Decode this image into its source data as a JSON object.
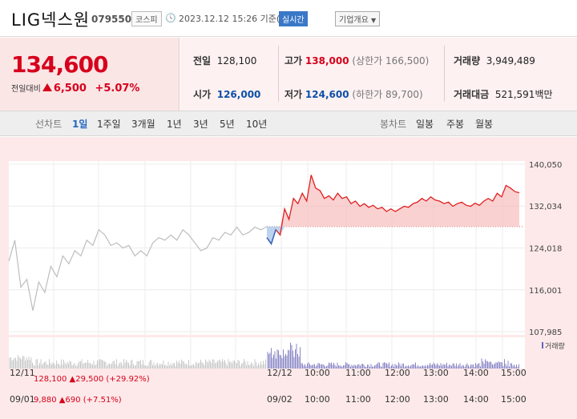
{
  "header": {
    "name": "LIG넥스원",
    "code": "079550",
    "market": "코스피",
    "datetime": "2023.12.12 15:26 기준(장중)",
    "realtime": "실시간",
    "company_info": "기업개요"
  },
  "price": {
    "current": "134,600",
    "label": "전일대비",
    "change": "6,500",
    "pct": "+5.07%"
  },
  "stats": {
    "prev_label": "전일",
    "prev": "128,100",
    "high_label": "고가",
    "high": "138,000",
    "upper_label": "(상한가",
    "upper": "166,500)",
    "vol_label": "거래량",
    "vol": "3,949,489",
    "open_label": "시가",
    "open": "126,000",
    "low_label": "저가",
    "low": "124,600",
    "lower_label": "(하한가",
    "lower": "89,700)",
    "amt_label": "거래대금",
    "amt": "521,591",
    "amt_unit": "백만"
  },
  "tabs": {
    "line_label": "선차트",
    "periods": [
      "1일",
      "1주일",
      "3개월",
      "1년",
      "3년",
      "5년",
      "10년"
    ],
    "candle_label": "봉차트",
    "candle_periods": [
      "일봉",
      "주봉",
      "월봉"
    ]
  },
  "chart_data": {
    "type": "line",
    "y_ticks": [
      "140,050",
      "132,034",
      "124,018",
      "116,001",
      "107,985"
    ],
    "ylim": [
      107985,
      140050
    ],
    "prev_close": 128100,
    "legend_volume": "거래량",
    "top_axis": {
      "labels": [
        "12/11",
        "12/12",
        "10:00",
        "11:00",
        "12:00",
        "13:00",
        "14:00",
        "15:00"
      ],
      "info": "128,100 ▲29,500 (+29.92%)"
    },
    "bottom_axis": {
      "labels": [
        "09/01",
        "09/02",
        "10:00",
        "11:00",
        "12:00",
        "13:00",
        "14:00",
        "15:00"
      ],
      "info": "9,880 ▲690 (+7.51%)"
    },
    "history_series": [
      [
        0,
        121500
      ],
      [
        1,
        125500
      ],
      [
        2,
        116500
      ],
      [
        3,
        118000
      ],
      [
        4,
        112000
      ],
      [
        5,
        117500
      ],
      [
        6,
        115500
      ],
      [
        7,
        120500
      ],
      [
        8,
        118500
      ],
      [
        9,
        122500
      ],
      [
        10,
        121000
      ],
      [
        11,
        123500
      ],
      [
        12,
        122500
      ],
      [
        13,
        125500
      ],
      [
        14,
        124500
      ],
      [
        15,
        127500
      ],
      [
        16,
        126500
      ],
      [
        17,
        124500
      ],
      [
        18,
        125000
      ],
      [
        19,
        124000
      ],
      [
        20,
        124500
      ],
      [
        21,
        122500
      ],
      [
        22,
        123500
      ],
      [
        23,
        122500
      ],
      [
        24,
        125000
      ],
      [
        25,
        126000
      ],
      [
        26,
        125500
      ],
      [
        27,
        126500
      ],
      [
        28,
        125500
      ],
      [
        29,
        127500
      ],
      [
        30,
        126500
      ],
      [
        31,
        125000
      ],
      [
        32,
        123500
      ],
      [
        33,
        124000
      ],
      [
        34,
        126000
      ],
      [
        35,
        125500
      ],
      [
        36,
        127000
      ],
      [
        37,
        126500
      ],
      [
        38,
        128000
      ],
      [
        39,
        126500
      ],
      [
        40,
        127000
      ],
      [
        41,
        128000
      ],
      [
        42,
        127500
      ],
      [
        43,
        128100
      ]
    ],
    "intraday_series": [
      [
        0,
        126000
      ],
      [
        2,
        124800
      ],
      [
        4,
        127500
      ],
      [
        6,
        126500
      ],
      [
        8,
        131500
      ],
      [
        10,
        129500
      ],
      [
        12,
        133500
      ],
      [
        14,
        132500
      ],
      [
        16,
        134500
      ],
      [
        18,
        133000
      ],
      [
        20,
        138000
      ],
      [
        22,
        135500
      ],
      [
        24,
        135000
      ],
      [
        26,
        133500
      ],
      [
        28,
        134000
      ],
      [
        30,
        133200
      ],
      [
        32,
        134500
      ],
      [
        34,
        133500
      ],
      [
        36,
        133800
      ],
      [
        38,
        132500
      ],
      [
        40,
        133000
      ],
      [
        42,
        132000
      ],
      [
        44,
        132500
      ],
      [
        46,
        131800
      ],
      [
        48,
        132200
      ],
      [
        50,
        131500
      ],
      [
        52,
        131800
      ],
      [
        54,
        131000
      ],
      [
        56,
        131500
      ],
      [
        58,
        131000
      ],
      [
        60,
        131500
      ],
      [
        62,
        132000
      ],
      [
        64,
        131800
      ],
      [
        66,
        132500
      ],
      [
        68,
        132800
      ],
      [
        70,
        133500
      ],
      [
        72,
        133000
      ],
      [
        74,
        133800
      ],
      [
        76,
        133200
      ],
      [
        78,
        133000
      ],
      [
        80,
        132500
      ],
      [
        82,
        132800
      ],
      [
        84,
        132000
      ],
      [
        86,
        132500
      ],
      [
        88,
        132800
      ],
      [
        90,
        132200
      ],
      [
        92,
        132000
      ],
      [
        94,
        132600
      ],
      [
        96,
        132200
      ],
      [
        98,
        133000
      ],
      [
        100,
        133500
      ],
      [
        102,
        133000
      ],
      [
        104,
        134500
      ],
      [
        106,
        133800
      ],
      [
        108,
        136000
      ],
      [
        110,
        135500
      ],
      [
        112,
        134800
      ],
      [
        114,
        134600
      ]
    ]
  }
}
